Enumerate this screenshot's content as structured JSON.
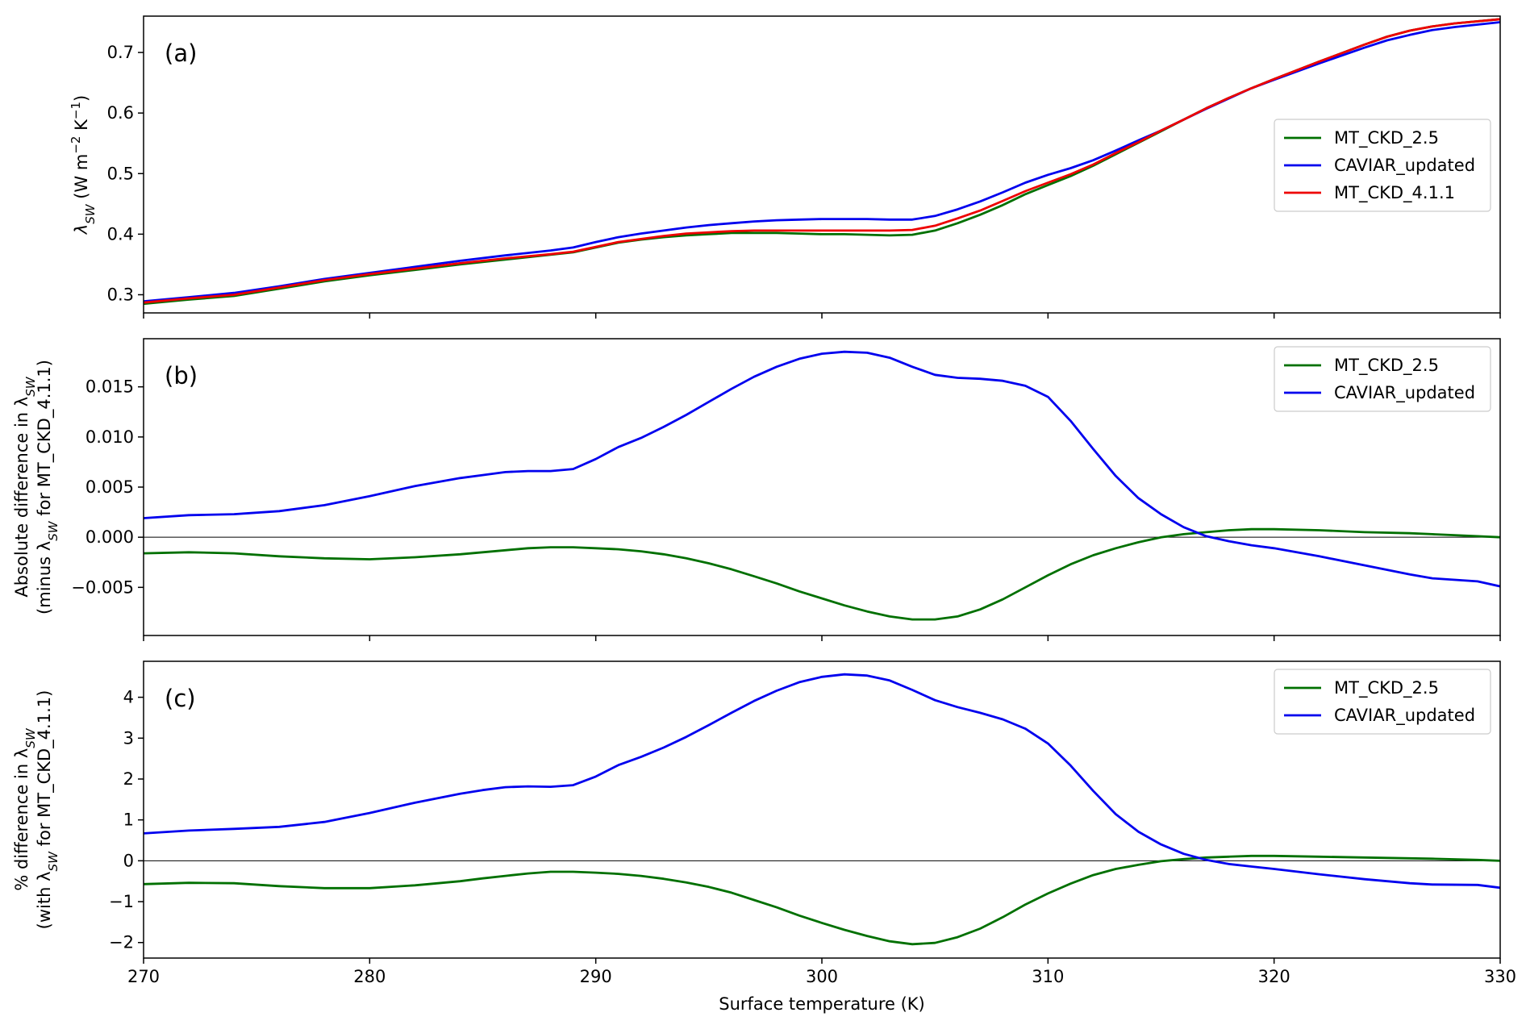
{
  "figure": {
    "xlabel": "Surface temperature (K)",
    "x_ticks": [
      270,
      280,
      290,
      300,
      310,
      320,
      330
    ],
    "xlim": [
      270,
      330
    ],
    "series_colors": {
      "MT_CKD_2.5": "#007000",
      "CAVIAR_updated": "#0000ee",
      "MT_CKD_4.1.1": "#ee0000"
    }
  },
  "chart_data": [
    {
      "type": "line",
      "panel": "(a)",
      "ylabel_main": "λ",
      "ylabel_sub": "SW",
      "ylabel_unit": "(W m",
      "ylabel_exp1": "−2",
      "ylabel_k": " K",
      "ylabel_exp2": "−1",
      "ylabel_close": ")",
      "xlim": [
        270,
        330
      ],
      "ylim": [
        0.27,
        0.76
      ],
      "y_ticks": [
        0.3,
        0.4,
        0.5,
        0.6,
        0.7
      ],
      "y_tick_labels": [
        "0.3",
        "0.4",
        "0.5",
        "0.6",
        "0.7"
      ],
      "zero_line": false,
      "legend": "center-right",
      "x": [
        270,
        272,
        274,
        276,
        278,
        280,
        282,
        284,
        286,
        288,
        289,
        290,
        291,
        292,
        293,
        294,
        295,
        296,
        297,
        298,
        299,
        300,
        301,
        302,
        303,
        304,
        305,
        306,
        307,
        308,
        309,
        310,
        311,
        312,
        313,
        314,
        315,
        316,
        317,
        318,
        319,
        320,
        322,
        324,
        325,
        326,
        327,
        328,
        330
      ],
      "series": [
        {
          "name": "MT_CKD_2.5",
          "values": [
            0.285,
            0.292,
            0.298,
            0.31,
            0.322,
            0.332,
            0.341,
            0.35,
            0.358,
            0.366,
            0.37,
            0.378,
            0.386,
            0.391,
            0.395,
            0.398,
            0.4,
            0.402,
            0.402,
            0.402,
            0.401,
            0.4,
            0.4,
            0.399,
            0.398,
            0.399,
            0.406,
            0.418,
            0.432,
            0.448,
            0.466,
            0.481,
            0.496,
            0.513,
            0.532,
            0.551,
            0.57,
            0.589,
            0.608,
            0.625,
            0.641,
            0.656,
            0.685,
            0.713,
            0.726,
            0.736,
            0.743,
            0.748,
            0.755
          ]
        },
        {
          "name": "CAVIAR_updated",
          "values": [
            0.289,
            0.296,
            0.303,
            0.314,
            0.326,
            0.336,
            0.346,
            0.356,
            0.365,
            0.373,
            0.378,
            0.387,
            0.395,
            0.401,
            0.406,
            0.411,
            0.415,
            0.418,
            0.421,
            0.423,
            0.424,
            0.425,
            0.425,
            0.425,
            0.424,
            0.424,
            0.43,
            0.441,
            0.454,
            0.469,
            0.485,
            0.498,
            0.509,
            0.522,
            0.538,
            0.555,
            0.571,
            0.589,
            0.607,
            0.624,
            0.641,
            0.655,
            0.682,
            0.708,
            0.72,
            0.729,
            0.737,
            0.742,
            0.75
          ]
        },
        {
          "name": "MT_CKD_4.1.1",
          "values": [
            0.287,
            0.294,
            0.3,
            0.312,
            0.324,
            0.334,
            0.343,
            0.352,
            0.36,
            0.367,
            0.371,
            0.379,
            0.387,
            0.392,
            0.397,
            0.401,
            0.403,
            0.405,
            0.406,
            0.406,
            0.406,
            0.406,
            0.406,
            0.406,
            0.406,
            0.407,
            0.414,
            0.426,
            0.439,
            0.455,
            0.471,
            0.485,
            0.499,
            0.515,
            0.534,
            0.552,
            0.571,
            0.589,
            0.608,
            0.625,
            0.641,
            0.656,
            0.685,
            0.713,
            0.726,
            0.736,
            0.743,
            0.748,
            0.755
          ]
        }
      ]
    },
    {
      "type": "line",
      "panel": "(b)",
      "ylabel_line1": "Absolute difference in λ",
      "ylabel_line1_sub": "SW",
      "ylabel_line2": "(minus λ",
      "ylabel_line2_sub": "SW",
      "ylabel_line2_rest": " for MT_CKD_4.1.1)",
      "xlim": [
        270,
        330
      ],
      "ylim": [
        -0.0098,
        0.0198
      ],
      "y_ticks": [
        -0.005,
        0.0,
        0.005,
        0.01,
        0.015
      ],
      "y_tick_labels": [
        "−0.005",
        "0.000",
        "0.005",
        "0.010",
        "0.015"
      ],
      "zero_line": true,
      "legend": "top-right",
      "x": [
        270,
        272,
        274,
        276,
        278,
        280,
        282,
        284,
        285,
        286,
        287,
        288,
        289,
        290,
        291,
        292,
        293,
        294,
        295,
        296,
        297,
        298,
        299,
        300,
        301,
        302,
        303,
        304,
        305,
        306,
        307,
        308,
        309,
        310,
        311,
        312,
        313,
        314,
        315,
        316,
        317,
        318,
        319,
        320,
        322,
        324,
        326,
        327,
        329,
        330
      ],
      "series": [
        {
          "name": "MT_CKD_2.5",
          "values": [
            -0.0016,
            -0.0015,
            -0.0016,
            -0.0019,
            -0.0021,
            -0.0022,
            -0.002,
            -0.0017,
            -0.0015,
            -0.0013,
            -0.0011,
            -0.001,
            -0.001,
            -0.0011,
            -0.0012,
            -0.0014,
            -0.0017,
            -0.0021,
            -0.0026,
            -0.0032,
            -0.0039,
            -0.0046,
            -0.0054,
            -0.0061,
            -0.0068,
            -0.0074,
            -0.0079,
            -0.0082,
            -0.0082,
            -0.0079,
            -0.0072,
            -0.0062,
            -0.005,
            -0.0038,
            -0.0027,
            -0.0018,
            -0.0011,
            -0.0005,
            0.0,
            0.0003,
            0.0005,
            0.0007,
            0.0008,
            0.0008,
            0.0007,
            0.0005,
            0.0004,
            0.0003,
            0.0001,
            0.0
          ]
        },
        {
          "name": "CAVIAR_updated",
          "values": [
            0.0019,
            0.0022,
            0.0023,
            0.0026,
            0.0032,
            0.0041,
            0.0051,
            0.0059,
            0.0062,
            0.0065,
            0.0066,
            0.0066,
            0.0068,
            0.0078,
            0.009,
            0.0099,
            0.011,
            0.0122,
            0.0135,
            0.0148,
            0.016,
            0.017,
            0.0178,
            0.0183,
            0.0185,
            0.0184,
            0.0179,
            0.017,
            0.0162,
            0.0159,
            0.0158,
            0.0156,
            0.0151,
            0.014,
            0.0116,
            0.0088,
            0.0061,
            0.0039,
            0.0023,
            0.001,
            0.0001,
            -0.0004,
            -0.0008,
            -0.0011,
            -0.0019,
            -0.0028,
            -0.0037,
            -0.0041,
            -0.0044,
            -0.0049
          ]
        }
      ]
    },
    {
      "type": "line",
      "panel": "(c)",
      "ylabel_line1": "% difference in λ",
      "ylabel_line1_sub": "SW",
      "ylabel_line2": "(with λ",
      "ylabel_line2_sub": "SW",
      "ylabel_line2_rest": " for MT_CKD_4.1.1)",
      "xlim": [
        270,
        330
      ],
      "ylim": [
        -2.38,
        4.88
      ],
      "y_ticks": [
        -2,
        -1,
        0,
        1,
        2,
        3,
        4
      ],
      "y_tick_labels": [
        "−2",
        "−1",
        "0",
        "1",
        "2",
        "3",
        "4"
      ],
      "zero_line": true,
      "legend": "top-right",
      "x": [
        270,
        272,
        274,
        276,
        278,
        280,
        282,
        284,
        285,
        286,
        287,
        288,
        289,
        290,
        291,
        292,
        293,
        294,
        295,
        296,
        297,
        298,
        299,
        300,
        301,
        302,
        303,
        304,
        305,
        306,
        307,
        308,
        309,
        310,
        311,
        312,
        313,
        314,
        315,
        316,
        317,
        318,
        319,
        320,
        322,
        324,
        326,
        327,
        329,
        330
      ],
      "series": [
        {
          "name": "MT_CKD_2.5",
          "values": [
            -0.57,
            -0.54,
            -0.55,
            -0.62,
            -0.67,
            -0.67,
            -0.6,
            -0.5,
            -0.43,
            -0.37,
            -0.31,
            -0.27,
            -0.27,
            -0.29,
            -0.32,
            -0.37,
            -0.44,
            -0.53,
            -0.64,
            -0.78,
            -0.96,
            -1.14,
            -1.34,
            -1.52,
            -1.69,
            -1.84,
            -1.97,
            -2.04,
            -2.01,
            -1.87,
            -1.66,
            -1.38,
            -1.07,
            -0.8,
            -0.56,
            -0.35,
            -0.2,
            -0.1,
            -0.01,
            0.04,
            0.08,
            0.1,
            0.12,
            0.12,
            0.1,
            0.08,
            0.06,
            0.05,
            0.02,
            0.0
          ]
        },
        {
          "name": "CAVIAR_updated",
          "values": [
            0.67,
            0.74,
            0.78,
            0.83,
            0.95,
            1.17,
            1.42,
            1.64,
            1.73,
            1.8,
            1.82,
            1.81,
            1.85,
            2.06,
            2.34,
            2.54,
            2.77,
            3.03,
            3.32,
            3.62,
            3.91,
            4.16,
            4.37,
            4.5,
            4.56,
            4.53,
            4.41,
            4.18,
            3.93,
            3.76,
            3.62,
            3.46,
            3.23,
            2.87,
            2.33,
            1.71,
            1.14,
            0.71,
            0.4,
            0.17,
            0.02,
            -0.08,
            -0.14,
            -0.2,
            -0.33,
            -0.45,
            -0.55,
            -0.58,
            -0.59,
            -0.66
          ]
        }
      ]
    }
  ]
}
